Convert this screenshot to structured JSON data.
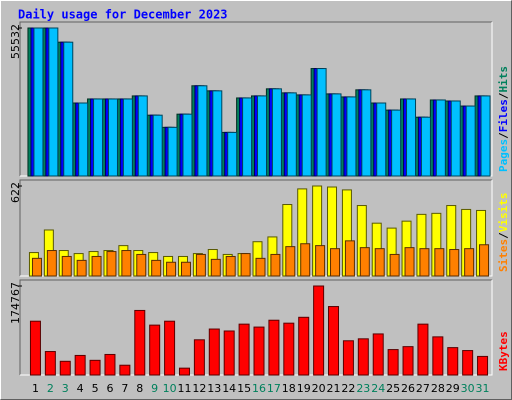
{
  "chart_data": [
    {
      "type": "bar",
      "title": "Daily usage for December 2023",
      "legend_separator": "/",
      "ylim": [
        0,
        55532
      ],
      "yticks": [
        55532
      ],
      "series": [
        {
          "name": "Hits",
          "color": "#00805c",
          "values": [
            55532,
            55532,
            50207,
            27386,
            28907,
            28907,
            28907,
            30048,
            22821,
            18257,
            23201,
            33851,
            31950,
            16355,
            29287,
            30048,
            32711,
            31189,
            30428,
            40318,
            30809,
            29668,
            32330,
            27386,
            24724,
            28907,
            22060,
            28527,
            28146,
            26245,
            30048
          ]
        },
        {
          "name": "Files",
          "color": "#0000ff",
          "values": [
            55532,
            55532,
            50207,
            27386,
            28907,
            28907,
            28907,
            30048,
            22821,
            18257,
            23201,
            33851,
            31950,
            16355,
            29287,
            30048,
            32711,
            31189,
            30428,
            40318,
            30809,
            29668,
            32330,
            27386,
            24724,
            28907,
            22060,
            28527,
            28146,
            26245,
            30048
          ]
        },
        {
          "name": "Pages",
          "color": "#00c0ff",
          "values": [
            55532,
            55532,
            50207,
            27386,
            28907,
            28907,
            28907,
            30048,
            22821,
            18257,
            23201,
            33851,
            31950,
            16355,
            29287,
            30048,
            32711,
            31189,
            30428,
            40318,
            30809,
            29668,
            32330,
            27386,
            24724,
            28907,
            22060,
            28527,
            28146,
            26245,
            30048
          ]
        }
      ]
    },
    {
      "type": "bar",
      "legend_separator": "/",
      "ylim": [
        0,
        622
      ],
      "yticks": [
        622
      ],
      "series": [
        {
          "name": "Visits",
          "color": "#ffff00",
          "values": [
            162,
            318,
            176,
            155,
            169,
            176,
            210,
            176,
            162,
            135,
            135,
            155,
            183,
            149,
            155,
            237,
            270,
            494,
            602,
            622,
            615,
            595,
            487,
            365,
            331,
            379,
            426,
            433,
            487,
            460,
            453
          ]
        },
        {
          "name": "Sites",
          "color": "#ff8000",
          "values": [
            122,
            176,
            135,
            108,
            135,
            169,
            176,
            149,
            108,
            95,
            95,
            149,
            115,
            135,
            155,
            122,
            149,
            203,
            223,
            210,
            189,
            243,
            196,
            189,
            149,
            196,
            189,
            189,
            183,
            189,
            216
          ]
        }
      ]
    },
    {
      "type": "bar",
      "ylim": [
        0,
        174767
      ],
      "yticks": [
        174767
      ],
      "categories": [
        "1",
        "2",
        "3",
        "4",
        "5",
        "6",
        "7",
        "8",
        "9",
        "10",
        "11",
        "12",
        "13",
        "14",
        "15",
        "16",
        "17",
        "18",
        "19",
        "20",
        "21",
        "22",
        "23",
        "24",
        "25",
        "26",
        "27",
        "28",
        "29",
        "30",
        "31"
      ],
      "category_colors": [
        "#000000",
        "#00805c",
        "#00805c",
        "#000000",
        "#000000",
        "#000000",
        "#000000",
        "#000000",
        "#00805c",
        "#00805c",
        "#000000",
        "#000000",
        "#000000",
        "#000000",
        "#000000",
        "#00805c",
        "#00805c",
        "#000000",
        "#000000",
        "#000000",
        "#000000",
        "#000000",
        "#00805c",
        "#00805c",
        "#000000",
        "#000000",
        "#000000",
        "#000000",
        "#000000",
        "#00805c",
        "#00805c"
      ],
      "series": [
        {
          "name": "KBytes",
          "color": "#ff0000",
          "values": [
            105627,
            46092,
            26887,
            38410,
            28807,
            40330,
            19205,
            126753,
            97945,
            105627,
            13443,
            69138,
            90263,
            86422,
            99866,
            94104,
            107548,
            101786,
            113309,
            174767,
            134436,
            67218,
            71059,
            80661,
            49933,
            55695,
            99866,
            74900,
            53774,
            48013,
            36490
          ]
        }
      ]
    }
  ]
}
